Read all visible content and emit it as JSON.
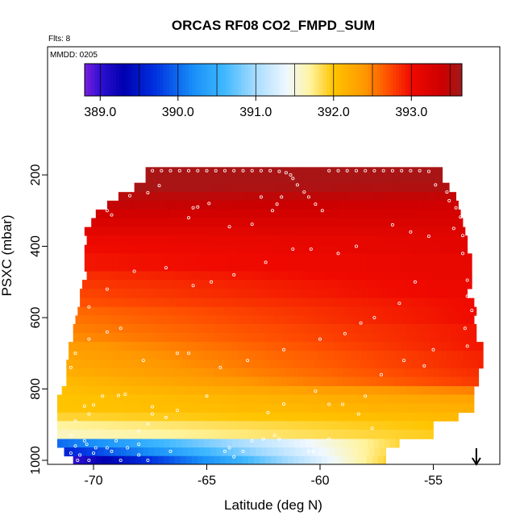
{
  "chart_data": {
    "type": "heatmap",
    "title": "ORCAS RF08 CO2_FMPD_SUM",
    "subtitle": "Flts: 8",
    "annotation": "MMDD: 0205",
    "xlabel": "Latitude (deg N)",
    "ylabel": "PSXC (mbar)",
    "xlim": [
      -71.6,
      -53.4
    ],
    "ylim": [
      1010,
      40
    ],
    "x_ticks": [
      {
        "value": -70,
        "label": "-70"
      },
      {
        "value": -65,
        "label": "-65"
      },
      {
        "value": -60,
        "label": "-60"
      },
      {
        "value": -55,
        "label": "-55"
      }
    ],
    "y_ticks": [
      {
        "value": 200,
        "label": "200"
      },
      {
        "value": 400,
        "label": "400"
      },
      {
        "value": 600,
        "label": "600"
      },
      {
        "value": 800,
        "label": "800"
      },
      {
        "value": 1000,
        "label": "1000"
      }
    ],
    "colorbar": {
      "range": [
        388.8,
        393.65
      ],
      "ticks": [
        {
          "value": 389.0,
          "label": "389.0"
        },
        {
          "value": 390.0,
          "label": "390.0"
        },
        {
          "value": 391.0,
          "label": "391.0"
        },
        {
          "value": 392.0,
          "label": "392.0"
        },
        {
          "value": 393.0,
          "label": "393.0"
        }
      ],
      "stops": [
        {
          "v": 388.8,
          "c": "#7a1fe0"
        },
        {
          "v": 389.0,
          "c": "#3010d0"
        },
        {
          "v": 389.3,
          "c": "#0000b0"
        },
        {
          "v": 389.7,
          "c": "#0030e0"
        },
        {
          "v": 390.2,
          "c": "#1890f8"
        },
        {
          "v": 390.6,
          "c": "#40b8ff"
        },
        {
          "v": 391.0,
          "c": "#a8dcff"
        },
        {
          "v": 391.4,
          "c": "#f0f8ff"
        },
        {
          "v": 391.7,
          "c": "#fff4a0"
        },
        {
          "v": 392.0,
          "c": "#ffc400"
        },
        {
          "v": 392.4,
          "c": "#ff9800"
        },
        {
          "v": 392.7,
          "c": "#ff5000"
        },
        {
          "v": 393.0,
          "c": "#f00a00"
        },
        {
          "v": 393.4,
          "c": "#cc0000"
        },
        {
          "v": 393.65,
          "c": "#a01a1a"
        }
      ]
    },
    "bands": [
      {
        "p": [
          178,
          200
        ],
        "lat": [
          -67.7,
          -54.6
        ],
        "vals": [
          393.6,
          393.6
        ]
      },
      {
        "p": [
          200,
          222
        ],
        "lat": [
          -67.7,
          -54.6
        ],
        "vals": [
          393.6,
          393.6
        ]
      },
      {
        "p": [
          222,
          248
        ],
        "lat": [
          -68.2,
          -54.3
        ],
        "vals": [
          393.6,
          393.55
        ]
      },
      {
        "p": [
          248,
          272
        ],
        "lat": [
          -68.9,
          -54.0
        ],
        "vals": [
          393.5,
          393.45
        ]
      },
      {
        "p": [
          272,
          297
        ],
        "lat": [
          -69.4,
          -53.9
        ],
        "vals": [
          393.45,
          393.35
        ]
      },
      {
        "p": [
          297,
          321
        ],
        "lat": [
          -69.9,
          -53.8
        ],
        "vals": [
          393.35,
          393.3
        ]
      },
      {
        "p": [
          321,
          346
        ],
        "lat": [
          -70.1,
          -53.7
        ],
        "vals": [
          393.25,
          393.25
        ]
      },
      {
        "p": [
          346,
          370
        ],
        "lat": [
          -70.4,
          -53.6
        ],
        "vals": [
          393.15,
          393.2
        ]
      },
      {
        "p": [
          370,
          396
        ],
        "lat": [
          -70.3,
          -53.5
        ],
        "vals": [
          393.05,
          393.15
        ]
      },
      {
        "p": [
          396,
          420
        ],
        "lat": [
          -70.4,
          -53.5
        ],
        "vals": [
          393.0,
          393.15
        ]
      },
      {
        "p": [
          420,
          445
        ],
        "lat": [
          -70.4,
          -53.3
        ],
        "vals": [
          392.95,
          393.1
        ]
      },
      {
        "p": [
          445,
          470
        ],
        "lat": [
          -70.4,
          -53.3
        ],
        "vals": [
          392.95,
          393.1
        ]
      },
      {
        "p": [
          470,
          494
        ],
        "lat": [
          -70.3,
          -53.3
        ],
        "vals": [
          392.85,
          393.1
        ]
      },
      {
        "p": [
          494,
          519
        ],
        "lat": [
          -70.5,
          -53.3
        ],
        "vals": [
          392.8,
          393.05
        ]
      },
      {
        "p": [
          519,
          545
        ],
        "lat": [
          -70.6,
          -53.5
        ],
        "vals": [
          392.75,
          393.05
        ]
      },
      {
        "p": [
          545,
          570
        ],
        "lat": [
          -70.6,
          -53.2
        ],
        "vals": [
          392.7,
          393.0
        ]
      },
      {
        "p": [
          570,
          594
        ],
        "lat": [
          -70.7,
          -53.1
        ],
        "vals": [
          392.6,
          393.0
        ]
      },
      {
        "p": [
          594,
          618
        ],
        "lat": [
          -70.8,
          -53.2
        ],
        "vals": [
          392.55,
          393.0
        ]
      },
      {
        "p": [
          618,
          643
        ],
        "lat": [
          -70.9,
          -53.1
        ],
        "vals": [
          392.5,
          392.95
        ]
      },
      {
        "p": [
          643,
          668
        ],
        "lat": [
          -70.9,
          -53.1
        ],
        "vals": [
          392.45,
          392.95
        ]
      },
      {
        "p": [
          668,
          693
        ],
        "lat": [
          -71.1,
          -52.8
        ],
        "vals": [
          392.35,
          392.95
        ]
      },
      {
        "p": [
          693,
          718
        ],
        "lat": [
          -71.1,
          -52.8
        ],
        "vals": [
          392.3,
          392.9
        ]
      },
      {
        "p": [
          718,
          742
        ],
        "lat": [
          -71.2,
          -52.8
        ],
        "vals": [
          392.25,
          392.9
        ]
      },
      {
        "p": [
          742,
          766
        ],
        "lat": [
          -71.2,
          -53.0
        ],
        "vals": [
          392.2,
          392.85
        ]
      },
      {
        "p": [
          766,
          792
        ],
        "lat": [
          -71.2,
          -53.0
        ],
        "vals": [
          392.1,
          392.8
        ]
      },
      {
        "p": [
          792,
          816
        ],
        "lat": [
          -71.4,
          -53.2
        ],
        "vals": [
          392.05,
          392.5
        ]
      },
      {
        "p": [
          816,
          841
        ],
        "lat": [
          -71.6,
          -53.2
        ],
        "vals": [
          392.0,
          392.3
        ]
      },
      {
        "p": [
          841,
          866
        ],
        "lat": [
          -71.6,
          -53.2
        ],
        "vals": [
          392.0,
          392.2
        ]
      },
      {
        "p": [
          866,
          890
        ],
        "lat": [
          -71.6,
          -53.9
        ],
        "vals": [
          391.9,
          392.1
        ]
      },
      {
        "p": [
          890,
          914
        ],
        "lat": [
          -71.6,
          -55.0
        ],
        "vals": [
          391.7,
          392.0
        ]
      },
      {
        "p": [
          914,
          940
        ],
        "lat": [
          -71.6,
          -55.0
        ],
        "vals": [
          391.6,
          391.95
        ]
      },
      {
        "p": [
          940,
          964
        ],
        "lat": [
          -71.6,
          -56.5
        ],
        "vals": [
          390.0,
          391.9
        ]
      },
      {
        "p": [
          964,
          988
        ],
        "lat": [
          -71.3,
          -57.1
        ],
        "vals": [
          389.6,
          391.85
        ]
      },
      {
        "p": [
          988,
          1010
        ],
        "lat": [
          -70.9,
          -57.1
        ],
        "vals": [
          389.0,
          391.9
        ]
      }
    ],
    "points": [
      [
        -67.4,
        188
      ],
      [
        -67.0,
        188
      ],
      [
        -66.6,
        188
      ],
      [
        -66.2,
        188
      ],
      [
        -65.8,
        188
      ],
      [
        -65.4,
        188
      ],
      [
        -65.0,
        188
      ],
      [
        -64.6,
        188
      ],
      [
        -64.2,
        188
      ],
      [
        -63.8,
        188
      ],
      [
        -63.4,
        188
      ],
      [
        -63.0,
        188
      ],
      [
        -62.6,
        188
      ],
      [
        -62.2,
        188
      ],
      [
        -61.8,
        190
      ],
      [
        -61.5,
        194
      ],
      [
        -61.3,
        200
      ],
      [
        -59.6,
        188
      ],
      [
        -59.2,
        188
      ],
      [
        -58.8,
        188
      ],
      [
        -58.4,
        188
      ],
      [
        -58.0,
        188
      ],
      [
        -57.6,
        188
      ],
      [
        -57.2,
        188
      ],
      [
        -56.8,
        188
      ],
      [
        -56.4,
        188
      ],
      [
        -56.0,
        188
      ],
      [
        -55.6,
        188
      ],
      [
        -55.2,
        190
      ],
      [
        -61.2,
        210
      ],
      [
        -61.0,
        228
      ],
      [
        -60.7,
        248
      ],
      [
        -60.5,
        262
      ],
      [
        -60.2,
        282
      ],
      [
        -59.9,
        300
      ],
      [
        -61.7,
        262
      ],
      [
        -61.9,
        282
      ],
      [
        -62.1,
        300
      ],
      [
        -54.9,
        228
      ],
      [
        -54.4,
        248
      ],
      [
        -54.3,
        272
      ],
      [
        -54.0,
        292
      ],
      [
        -53.8,
        318
      ],
      [
        -54.1,
        350
      ],
      [
        -67.1,
        230
      ],
      [
        -67.6,
        250
      ],
      [
        -68.4,
        258
      ],
      [
        -69.4,
        300
      ],
      [
        -69.2,
        312
      ],
      [
        -64.9,
        280
      ],
      [
        -65.4,
        290
      ],
      [
        -65.6,
        292
      ],
      [
        -62.6,
        262
      ],
      [
        -63.0,
        338
      ],
      [
        -64.0,
        345
      ],
      [
        -65.8,
        320
      ],
      [
        -56.8,
        340
      ],
      [
        -56.0,
        360
      ],
      [
        -55.2,
        372
      ],
      [
        -58.4,
        400
      ],
      [
        -59.2,
        420
      ],
      [
        -60.4,
        408
      ],
      [
        -61.2,
        408
      ],
      [
        -62.4,
        445
      ],
      [
        -63.8,
        480
      ],
      [
        -64.8,
        500
      ],
      [
        -65.6,
        510
      ],
      [
        -66.8,
        460
      ],
      [
        -68.2,
        470
      ],
      [
        -69.4,
        520
      ],
      [
        -70.2,
        570
      ],
      [
        -53.7,
        370
      ],
      [
        -53.7,
        420
      ],
      [
        -53.5,
        495
      ],
      [
        -53.5,
        540
      ],
      [
        -53.3,
        580
      ],
      [
        -53.6,
        630
      ],
      [
        -53.5,
        680
      ],
      [
        -55.8,
        500
      ],
      [
        -56.5,
        560
      ],
      [
        -57.6,
        600
      ],
      [
        -58.2,
        615
      ],
      [
        -58.9,
        645
      ],
      [
        -60.0,
        660
      ],
      [
        -61.6,
        690
      ],
      [
        -63.2,
        720
      ],
      [
        -64.4,
        740
      ],
      [
        -65.8,
        700
      ],
      [
        -66.3,
        700
      ],
      [
        -67.8,
        720
      ],
      [
        -68.8,
        630
      ],
      [
        -69.4,
        640
      ],
      [
        -70.2,
        660
      ],
      [
        -70.8,
        700
      ],
      [
        -71.0,
        740
      ],
      [
        -55.0,
        690
      ],
      [
        -55.4,
        735
      ],
      [
        -56.3,
        720
      ],
      [
        -57.3,
        760
      ],
      [
        -58.0,
        820
      ],
      [
        -59.0,
        843
      ],
      [
        -59.6,
        843
      ],
      [
        -60.2,
        806
      ],
      [
        -61.6,
        842
      ],
      [
        -62.3,
        866
      ],
      [
        -63.0,
        945
      ],
      [
        -63.4,
        975
      ],
      [
        -64.2,
        975
      ],
      [
        -65.0,
        820
      ],
      [
        -66.3,
        860
      ],
      [
        -66.8,
        880
      ],
      [
        -57.7,
        910
      ],
      [
        -58.3,
        870
      ],
      [
        -59.6,
        940
      ],
      [
        -60.3,
        975
      ],
      [
        -60.5,
        975
      ],
      [
        -61.8,
        940
      ],
      [
        -62.0,
        930
      ],
      [
        -62.5,
        940
      ],
      [
        -63.8,
        990
      ],
      [
        -64.0,
        965
      ],
      [
        -66.6,
        975
      ],
      [
        -68.9,
        818
      ],
      [
        -68.6,
        815
      ],
      [
        -69.6,
        820
      ],
      [
        -70.0,
        845
      ],
      [
        -70.2,
        870
      ],
      [
        -70.4,
        848
      ],
      [
        -70.8,
        890
      ],
      [
        -71.0,
        930
      ],
      [
        -70.3,
        955
      ],
      [
        -69.9,
        965
      ],
      [
        -69.4,
        965
      ],
      [
        -69.0,
        945
      ],
      [
        -68.5,
        965
      ],
      [
        -68.0,
        955
      ],
      [
        -67.6,
        898
      ],
      [
        -68.0,
        918
      ],
      [
        -67.4,
        850
      ],
      [
        -67.4,
        870
      ],
      [
        -71.0,
        980
      ],
      [
        -70.8,
        960
      ],
      [
        -70.6,
        985
      ],
      [
        -70.7,
        1000
      ],
      [
        -70.4,
        945
      ],
      [
        -70.0,
        980
      ],
      [
        -70.2,
        1000
      ],
      [
        -69.2,
        975
      ],
      [
        -68.8,
        1000
      ],
      [
        -68.0,
        985
      ],
      [
        -67.6,
        1000
      ]
    ]
  },
  "markers": {
    "arrow_down_lat": -53.1
  },
  "colors": {
    "frame": "#000000",
    "point": "#ffffff"
  }
}
